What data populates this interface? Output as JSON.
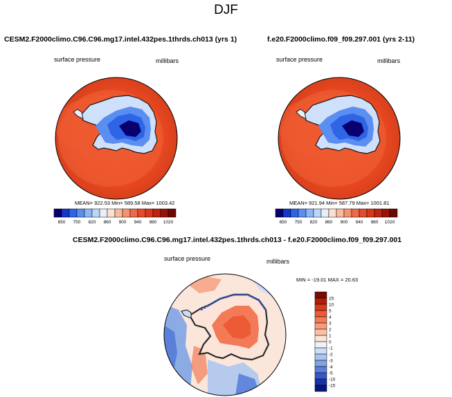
{
  "title": "DJF",
  "panels": [
    {
      "id": "left",
      "case": "CESM2.F2000climo.C96.C96.mg17.intel.432pes.1thrds.ch013 (yrs 1)",
      "variable": "surface pressure",
      "units": "millibars",
      "stats": "MEAN= 922.53  Min= 589.58  Max= 1003.42"
    },
    {
      "id": "right",
      "case": "f.e20.F2000climo.f09_f09.297.001 (yrs 2-11)",
      "variable": "surface pressure",
      "units": "millibars",
      "stats": "MEAN= 921.94  Min= 587.79  Max= 1001.81"
    }
  ],
  "top_colorbar": {
    "labels": [
      "650",
      "750",
      "820",
      "860",
      "900",
      "940",
      "980",
      "1020"
    ],
    "colors": [
      "#08006e",
      "#1437c8",
      "#2e64e6",
      "#5a8ef0",
      "#8cb6f5",
      "#bcd6fa",
      "#e8eefa",
      "#fde0d2",
      "#f9b99a",
      "#f59270",
      "#ee6a48",
      "#e64a28",
      "#d8381a",
      "#bf2410",
      "#9a1406",
      "#6e0800"
    ]
  },
  "diff_panel": {
    "title": "CESM2.F2000climo.C96.C96.mg17.intel.432pes.1thrds.ch013 - f.e20.F2000climo.f09_f09.297.001",
    "variable": "surface pressure",
    "units": "millibars",
    "stats": "MIN = -19.01  MAX =  20.63"
  },
  "diff_colorbar": {
    "labels": [
      "15",
      "10",
      "5",
      "4",
      "3",
      "2",
      "1",
      "0",
      "-1",
      "-2",
      "-3",
      "-4",
      "-5",
      "-10",
      "-15"
    ],
    "colors": [
      "#7a0a02",
      "#b01e0a",
      "#d83a1c",
      "#ec5a36",
      "#f27a56",
      "#f69c7c",
      "#fac0a6",
      "#fde4d8",
      "#eef3fb",
      "#cfdef6",
      "#a8c4ef",
      "#7fa4e6",
      "#5a80da",
      "#3558c8",
      "#1a32a8",
      "#08167a"
    ]
  }
}
